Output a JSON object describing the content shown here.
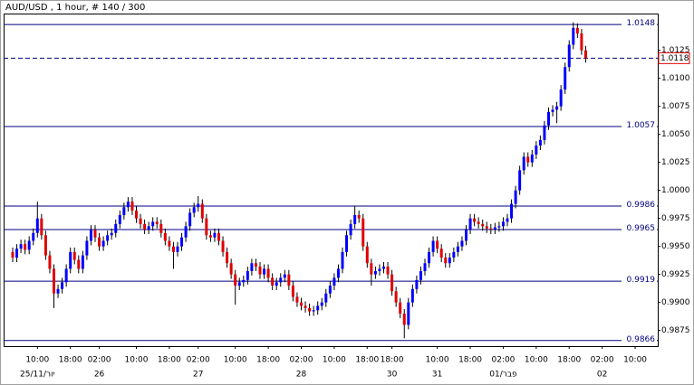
{
  "chart_data": {
    "type": "candlestick",
    "title": "AUD/USD , 1 hour, # 140 / 300",
    "categories": [
      null,
      null,
      null,
      null,
      null,
      null,
      "10:00",
      null,
      null,
      null,
      null,
      null,
      null,
      null,
      "18:00",
      null,
      null,
      null,
      null,
      null,
      null,
      "02:00",
      null,
      null,
      null,
      null,
      null,
      null,
      null,
      null,
      "10:00",
      null,
      null,
      null,
      null,
      null,
      null,
      null,
      "18:00",
      null,
      null,
      null,
      null,
      null,
      null,
      "02:00",
      null,
      null,
      null,
      null,
      null,
      null,
      null,
      null,
      "10:00",
      null,
      null,
      null,
      null,
      null,
      null,
      null,
      "18:00",
      null,
      null,
      null,
      null,
      null,
      null,
      null,
      "02:00",
      null,
      null,
      null,
      null,
      null,
      null,
      null,
      "10:00",
      null,
      null,
      null,
      null,
      null,
      null,
      null,
      "18:00",
      null,
      null,
      null,
      null,
      null,
      "18:00",
      null,
      null,
      null,
      null,
      null,
      null,
      null,
      null,
      null,
      null,
      "10:00",
      null,
      null,
      null,
      null,
      null,
      null,
      null,
      "18:00",
      null,
      null,
      null,
      null,
      null,
      null,
      null,
      "02:00",
      null,
      null,
      null,
      null,
      null,
      null,
      null,
      "10:00",
      null,
      null,
      null,
      null,
      null,
      null,
      null,
      "18:00",
      null,
      null,
      null,
      null,
      null,
      null,
      null,
      "02:00",
      null,
      null,
      null,
      null,
      null,
      null,
      null,
      "10:00"
    ],
    "date_labels": [
      null,
      null,
      null,
      null,
      null,
      null,
      "25/11/יור",
      null,
      null,
      null,
      null,
      null,
      null,
      null,
      null,
      null,
      null,
      null,
      null,
      null,
      null,
      "26",
      null,
      null,
      null,
      null,
      null,
      null,
      null,
      null,
      null,
      null,
      null,
      null,
      null,
      null,
      null,
      null,
      null,
      null,
      null,
      null,
      null,
      null,
      null,
      "27",
      null,
      null,
      null,
      null,
      null,
      null,
      null,
      null,
      null,
      null,
      null,
      null,
      null,
      null,
      null,
      null,
      null,
      null,
      null,
      null,
      null,
      null,
      null,
      null,
      "28",
      null,
      null,
      null,
      null,
      null,
      null,
      null,
      null,
      null,
      null,
      null,
      null,
      null,
      null,
      null,
      null,
      null,
      null,
      null,
      null,
      null,
      "30",
      null,
      null,
      null,
      null,
      null,
      null,
      null,
      null,
      null,
      null,
      "31",
      null,
      null,
      null,
      null,
      null,
      null,
      null,
      null,
      null,
      null,
      null,
      null,
      null,
      null,
      null,
      "01/פבר",
      null,
      null,
      null,
      null,
      null,
      null,
      null,
      null,
      null,
      null,
      null,
      null,
      null,
      null,
      null,
      null,
      null,
      null,
      null,
      null,
      null,
      null,
      null,
      "02",
      null,
      null,
      null,
      null,
      null,
      null,
      null,
      null
    ],
    "open": [
      0.9945,
      0.994,
      0.9948,
      0.9952,
      0.9947,
      0.9955,
      0.9962,
      0.9975,
      0.996,
      0.9942,
      0.993,
      0.9908,
      0.9912,
      0.9918,
      0.993,
      0.9945,
      0.9938,
      0.993,
      0.9942,
      0.9955,
      0.9965,
      0.9958,
      0.995,
      0.9955,
      0.996,
      0.9962,
      0.997,
      0.9978,
      0.9985,
      0.999,
      0.9982,
      0.9975,
      0.997,
      0.9965,
      0.9968,
      0.9972,
      0.997,
      0.9962,
      0.9955,
      0.995,
      0.9945,
      0.995,
      0.9958,
      0.9968,
      0.998,
      0.9985,
      0.9988,
      0.9975,
      0.996,
      0.9958,
      0.9962,
      0.9955,
      0.9945,
      0.9935,
      0.9925,
      0.9915,
      0.9918,
      0.992,
      0.9928,
      0.9935,
      0.9932,
      0.9925,
      0.993,
      0.9922,
      0.9915,
      0.9918,
      0.9922,
      0.9925,
      0.9915,
      0.9905,
      0.99,
      0.9897,
      0.9895,
      0.9892,
      0.9893,
      0.9897,
      0.99,
      0.9908,
      0.9915,
      0.9922,
      0.993,
      0.9945,
      0.996,
      0.997,
      0.9978,
      0.9975,
      0.995,
      0.9935,
      0.9925,
      0.9928,
      0.993,
      0.9932,
      0.9925,
      0.991,
      0.99,
      0.989,
      0.988,
      0.99,
      0.9912,
      0.992,
      0.9928,
      0.9935,
      0.9945,
      0.9955,
      0.9948,
      0.994,
      0.9935,
      0.994,
      0.9945,
      0.995,
      0.9955,
      0.9965,
      0.9975,
      0.9972,
      0.997,
      0.9968,
      0.9966,
      0.9965,
      0.9967,
      0.9968,
      0.9972,
      0.9975,
      0.9988,
      1.0,
      1.0018,
      1.003,
      1.0025,
      1.0032,
      1.004,
      1.0045,
      1.0058,
      1.007,
      1.0072,
      1.0075,
      1.009,
      1.011,
      1.013,
      1.0145,
      1.014,
      1.0125,
      null,
      null,
      null,
      null,
      null,
      null,
      null,
      null,
      null,
      null,
      null,
      null
    ],
    "high": [
      0.9949,
      0.9952,
      0.9956,
      0.9956,
      0.9959,
      0.9966,
      0.999,
      0.9979,
      0.9964,
      0.9946,
      0.9934,
      0.9916,
      0.9922,
      0.9934,
      0.9949,
      0.9949,
      0.9942,
      0.9946,
      0.9959,
      0.9969,
      0.9969,
      0.9962,
      0.9959,
      0.9964,
      0.9966,
      0.9974,
      0.9982,
      0.9989,
      0.9994,
      0.9994,
      0.9986,
      0.9979,
      0.9974,
      0.9972,
      0.9976,
      0.9976,
      0.9974,
      0.9966,
      0.9959,
      0.9954,
      0.9954,
      0.9962,
      0.9972,
      0.9984,
      0.9989,
      0.9995,
      0.9992,
      0.9979,
      0.9964,
      0.9966,
      0.9966,
      0.9959,
      0.9949,
      0.9939,
      0.9929,
      0.9922,
      0.9924,
      0.9932,
      0.9939,
      0.9939,
      0.9936,
      0.9934,
      0.9934,
      0.9926,
      0.9922,
      0.9926,
      0.9929,
      0.9929,
      0.9919,
      0.9909,
      0.9904,
      0.9901,
      0.9899,
      0.9897,
      0.9901,
      0.9904,
      0.9912,
      0.9919,
      0.9926,
      0.9934,
      0.9949,
      0.9964,
      0.9974,
      0.9986,
      0.9982,
      0.9979,
      0.9954,
      0.9939,
      0.9932,
      0.9934,
      0.9936,
      0.9936,
      0.9929,
      0.9914,
      0.9904,
      0.9894,
      0.9904,
      0.9916,
      0.9924,
      0.9932,
      0.9939,
      0.9949,
      0.9959,
      0.9959,
      0.9952,
      0.9944,
      0.9944,
      0.9949,
      0.9954,
      0.9959,
      0.9969,
      0.9979,
      0.9979,
      0.9976,
      0.9974,
      0.9972,
      0.997,
      0.9971,
      0.9972,
      0.9976,
      0.9979,
      0.9992,
      1.0004,
      1.0022,
      1.0034,
      1.0034,
      1.0036,
      1.0044,
      1.0049,
      1.0062,
      1.0074,
      1.0076,
      1.0079,
      1.0094,
      1.0114,
      1.0134,
      1.015,
      1.0149,
      1.0144,
      1.0129,
      null,
      null,
      null,
      null,
      null,
      null,
      null,
      null,
      null,
      null,
      null,
      null
    ],
    "low": [
      0.9936,
      0.9936,
      0.9944,
      0.9943,
      0.9943,
      0.9951,
      0.9958,
      0.9956,
      0.9938,
      0.9926,
      0.9895,
      0.9904,
      0.9908,
      0.9914,
      0.9926,
      0.9934,
      0.9926,
      0.9926,
      0.9938,
      0.9951,
      0.9954,
      0.9946,
      0.9946,
      0.9951,
      0.9956,
      0.9958,
      0.9966,
      0.9974,
      0.9981,
      0.9978,
      0.9971,
      0.9966,
      0.9961,
      0.9961,
      0.9964,
      0.9966,
      0.9958,
      0.9951,
      0.9946,
      0.993,
      0.9941,
      0.9946,
      0.9954,
      0.9964,
      0.9976,
      0.9981,
      0.9971,
      0.9956,
      0.9954,
      0.9954,
      0.9951,
      0.9941,
      0.9931,
      0.9921,
      0.9898,
      0.9911,
      0.9914,
      0.9916,
      0.9924,
      0.9928,
      0.9921,
      0.9921,
      0.9918,
      0.9911,
      0.9911,
      0.9914,
      0.9918,
      0.9911,
      0.9901,
      0.9896,
      0.9893,
      0.9891,
      0.9888,
      0.9888,
      0.9889,
      0.9893,
      0.9896,
      0.9904,
      0.9911,
      0.9918,
      0.9926,
      0.9941,
      0.9956,
      0.9966,
      0.9971,
      0.9946,
      0.9931,
      0.9915,
      0.9921,
      0.9924,
      0.9926,
      0.9921,
      0.9906,
      0.9896,
      0.9886,
      0.9868,
      0.9876,
      0.9896,
      0.9908,
      0.9916,
      0.9924,
      0.9931,
      0.9941,
      0.9944,
      0.9936,
      0.9931,
      0.9931,
      0.9936,
      0.9941,
      0.9946,
      0.9951,
      0.9961,
      0.9968,
      0.9966,
      0.9964,
      0.9962,
      0.9961,
      0.9961,
      0.9963,
      0.9964,
      0.9968,
      0.9971,
      0.9984,
      0.9996,
      1.0014,
      1.0021,
      1.0021,
      1.0028,
      1.0036,
      1.0041,
      1.0054,
      1.0066,
      1.006,
      1.0071,
      1.0086,
      1.0106,
      1.0126,
      1.0136,
      1.0121,
      1.0114,
      null,
      null,
      null,
      null,
      null,
      null,
      null,
      null,
      null,
      null,
      null,
      null
    ],
    "close": [
      0.994,
      0.9948,
      0.9952,
      0.9947,
      0.9955,
      0.9962,
      0.9975,
      0.996,
      0.9942,
      0.993,
      0.9908,
      0.9912,
      0.9918,
      0.993,
      0.9945,
      0.9938,
      0.993,
      0.9942,
      0.9955,
      0.9965,
      0.9958,
      0.995,
      0.9955,
      0.996,
      0.9962,
      0.997,
      0.9978,
      0.9985,
      0.999,
      0.9982,
      0.9975,
      0.997,
      0.9965,
      0.9968,
      0.9972,
      0.997,
      0.9962,
      0.9955,
      0.995,
      0.9945,
      0.995,
      0.9958,
      0.9968,
      0.998,
      0.9985,
      0.9988,
      0.9975,
      0.996,
      0.9958,
      0.9962,
      0.9955,
      0.9945,
      0.9935,
      0.9925,
      0.9915,
      0.9918,
      0.992,
      0.9928,
      0.9935,
      0.9932,
      0.9925,
      0.993,
      0.9922,
      0.9915,
      0.9918,
      0.9922,
      0.9925,
      0.9915,
      0.9905,
      0.99,
      0.9897,
      0.9895,
      0.9892,
      0.9893,
      0.9897,
      0.99,
      0.9908,
      0.9915,
      0.9922,
      0.993,
      0.9945,
      0.996,
      0.997,
      0.9978,
      0.9975,
      0.995,
      0.9935,
      0.9925,
      0.9928,
      0.993,
      0.9932,
      0.9925,
      0.991,
      0.99,
      0.989,
      0.988,
      0.99,
      0.9912,
      0.992,
      0.9928,
      0.9935,
      0.9945,
      0.9955,
      0.9948,
      0.994,
      0.9935,
      0.994,
      0.9945,
      0.995,
      0.9955,
      0.9965,
      0.9975,
      0.9972,
      0.997,
      0.9968,
      0.9966,
      0.9965,
      0.9967,
      0.9968,
      0.9972,
      0.9975,
      0.9988,
      1.0,
      1.0018,
      1.003,
      1.0025,
      1.0032,
      1.004,
      1.0045,
      1.0058,
      1.007,
      1.0072,
      1.0075,
      1.009,
      1.011,
      1.013,
      1.0145,
      1.014,
      1.0125,
      1.0118,
      null,
      null,
      null,
      null,
      null,
      null,
      null,
      null,
      null,
      null,
      null,
      null
    ],
    "up_color": "#0000ff",
    "down_color": "#e00000",
    "wick_color": "#000000",
    "levels": [
      1.0148,
      1.0057,
      0.9986,
      0.9965,
      0.9919,
      0.9866
    ],
    "level_color": "#000080",
    "last_price": 1.0118,
    "last_price_color": "#e00000",
    "ylim": [
      0.9861,
      1.0157
    ],
    "yticks": [
      1.0125,
      {
        "value": 1.01,
        "label": "1.0100"
      },
      1.0075,
      {
        "value": 1.005,
        "label": "1.0050"
      },
      1.0025,
      {
        "value": 1,
        "label": "1.0000"
      },
      0.9975,
      {
        "value": 0.995,
        "label": "0.9950"
      },
      0.9925,
      {
        "value": 0.99,
        "label": "0.9900"
      },
      0.9875
    ],
    "grid": false
  }
}
